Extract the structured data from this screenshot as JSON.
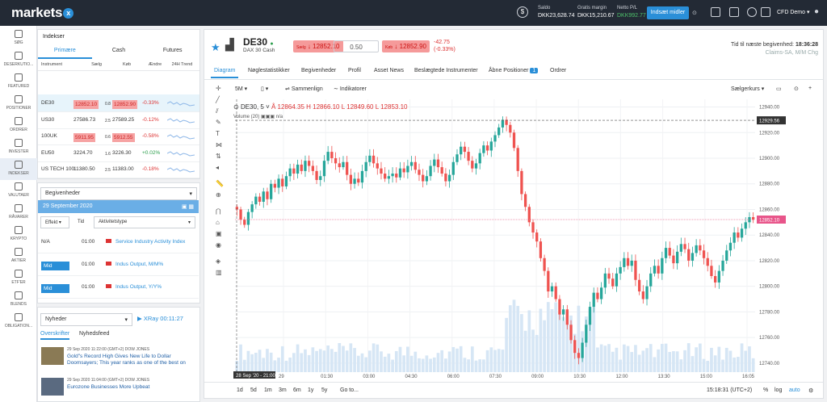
{
  "app": {
    "logo": "markets",
    "logo_x": "x"
  },
  "top": {
    "balance_label": "Saldo",
    "balance": "DKK23,628.74",
    "margin_label": "Gratis margin",
    "margin": "DKK15,210.67",
    "pl_label": "Netto P/L",
    "pl": "DKK992.77",
    "deposit": "Indsæt midler",
    "account": "CFD Demo"
  },
  "nav": [
    {
      "label": "SØG",
      "icon": "search-icon"
    },
    {
      "label": "DESERKUTIO...",
      "icon": "star-icon"
    },
    {
      "label": "FEATURED",
      "icon": "flag-icon"
    },
    {
      "label": "POSITIONER",
      "icon": "positions-icon"
    },
    {
      "label": "ORDRER",
      "icon": "orders-icon"
    },
    {
      "label": "INVESTER",
      "icon": "invest-icon"
    },
    {
      "label": "INDEKSER",
      "icon": "index-icon"
    },
    {
      "label": "VALUTAER",
      "icon": "currency-icon"
    },
    {
      "label": "RÅVARER",
      "icon": "commodity-icon"
    },
    {
      "label": "KRYPTO",
      "icon": "crypto-icon"
    },
    {
      "label": "AKTIER",
      "icon": "stocks-icon"
    },
    {
      "label": "ETF'ER",
      "icon": "etf-icon"
    },
    {
      "label": "BLENDS",
      "icon": "blends-icon"
    },
    {
      "label": "OBLIGATION...",
      "icon": "bonds-icon"
    }
  ],
  "indices": {
    "title": "Indekser",
    "tabs": [
      "Primære",
      "Cash",
      "Futures"
    ],
    "cols": [
      "Instrument",
      "Sælg",
      "Køb",
      "Ændre",
      "24H Trend"
    ],
    "rows": [
      {
        "name": "DE30",
        "sell": "12852.10",
        "spread": "0.8",
        "buy": "12852.90",
        "chg": "-0.33%"
      },
      {
        "name": "US30",
        "sell": "27586.73",
        "spread": "2.5",
        "buy": "27589.25",
        "chg": "-0.12%"
      },
      {
        "name": "100UK",
        "sell": "5911.95",
        "spread": "0.6",
        "buy": "5912.55",
        "chg": "-0.58%"
      },
      {
        "name": "EU50",
        "sell": "3224.70",
        "spread": "1.6",
        "buy": "3226.30",
        "chg": "+0.02%"
      },
      {
        "name": "US TECH 100",
        "sell": "11380.50",
        "spread": "2.5",
        "buy": "11383.00",
        "chg": "-0.18%"
      },
      {
        "name": "US500",
        "sell": "3353.38",
        "spread": "1",
        "buy": "3354.38",
        "chg": "-0.13%"
      }
    ]
  },
  "events": {
    "select": "Begivenheder",
    "date": "29 September 2020",
    "filter": "Effekt",
    "time_col": "Tid",
    "type": "Aktivitetstype",
    "rows": [
      {
        "impact": "N/A",
        "time": "01:00",
        "name": "Service Industry Activity Index"
      },
      {
        "impact": "Mid",
        "time": "01:00",
        "name": "Indus Output, M/M%"
      },
      {
        "impact": "Mid",
        "time": "01:00",
        "name": "Indus Output, Y/Y%"
      }
    ]
  },
  "news": {
    "select": "Nyheder",
    "xray": "XRay",
    "timer": "00:11:27",
    "tabs": [
      "Overskrifter",
      "Nyhedsfeed"
    ],
    "items": [
      {
        "meta": "29 Sep 2020 11:22:00 (GMT+2) DOW JONES",
        "title": "Gold\"s Record High Gives New Life to Dollar Doomsayers; This year ranks as one of the best on"
      },
      {
        "meta": "29 Sep 2020 11:04:00 (GMT+2) DOW JONES",
        "title": "Eurozone Businesses More Upbeat"
      }
    ]
  },
  "instrument": {
    "symbol": "DE30",
    "name": "DAX 30 Cash",
    "sell_label": "Sælg",
    "sell": "12852.10",
    "qty": "0.50",
    "buy_label": "Køb",
    "buy": "12852.90",
    "chg": "-42.75",
    "chg_pct": "(-0.33%)",
    "next_event_label": "Tid til næste begivenhed:",
    "next_event": "18:36:28",
    "next_event_name": "Claims-SA, M/M Chg"
  },
  "main_tabs": [
    "Diagram",
    "Nøglestatistikker",
    "Begivenheder",
    "Profil",
    "Asset News",
    "Beslægtede Instrumenter",
    "Åbne Positioner",
    "Ordrer"
  ],
  "open_positions_count": "1",
  "chart_toolbar": {
    "interval": "5M",
    "compare": "Sammenlign",
    "indicators": "Indikatorer",
    "price_type": "Sælgerkurs"
  },
  "chart_legend": {
    "symbol": "DE30, 5",
    "o": "Å 12864.35",
    "h": "H 12866.10",
    "l": "L 12849.60",
    "c": "L 12853.10",
    "volume": "Volume (20)",
    "vol_val": "n/a"
  },
  "chart_data": {
    "type": "candlestick",
    "x_ticks": [
      "29",
      "01:30",
      "03:00",
      "04:30",
      "06:00",
      "07:30",
      "09:00",
      "10:30",
      "12:00",
      "13:30",
      "15:00",
      "16:05"
    ],
    "y_ticks": [
      12940,
      12920,
      12900,
      12880,
      12860,
      12840,
      12820,
      12800,
      12780,
      12760,
      12740
    ],
    "ylim": [
      12733,
      12946
    ],
    "last_price": "12852.10",
    "crosshair_price": "12929.56",
    "crosshair_time": "28 Sep '20 - 21:00",
    "closes": [
      12860,
      12852,
      12848,
      12858,
      12864,
      12870,
      12866,
      12874,
      12868,
      12880,
      12877,
      12884,
      12878,
      12886,
      12892,
      12888,
      12895,
      12890,
      12898,
      12894,
      12890,
      12883,
      12886,
      12898,
      12905,
      12900,
      12896,
      12893,
      12897,
      12887,
      12880,
      12884,
      12881,
      12890,
      12897,
      12902,
      12896,
      12892,
      12888,
      12884,
      12886,
      12888,
      12885,
      12892,
      12889,
      12894,
      12897,
      12891,
      12887,
      12882,
      12886,
      12894,
      12899,
      12893,
      12888,
      12882,
      12887,
      12897,
      12903,
      12909,
      12905,
      12898,
      12892,
      12896,
      12904,
      12910,
      12906,
      12913,
      12918,
      12924,
      12930,
      12926,
      12920,
      12908,
      12890,
      12872,
      12862,
      12850,
      12842,
      12835,
      12822,
      12812,
      12796,
      12800,
      12790,
      12778,
      12782,
      12770,
      12758,
      12748,
      12744,
      12756,
      12770,
      12784,
      12795,
      12790,
      12799,
      12810,
      12806,
      12800,
      12810,
      12815,
      12822,
      12816,
      12820,
      12805,
      12796,
      12790,
      12800,
      12810,
      12816,
      12810,
      12822,
      12830,
      12824,
      12818,
      12827,
      12833,
      12829,
      12820,
      12826,
      12832,
      12828,
      12822,
      12816,
      12808,
      12803,
      12812,
      12820,
      12828,
      12834,
      12842,
      12838,
      12845,
      12850,
      12854,
      12852
    ]
  },
  "bottom": {
    "ranges": [
      "1d",
      "5d",
      "1m",
      "3m",
      "6m",
      "1y",
      "5y",
      "Go to..."
    ],
    "clock": "15:18:31 (UTC+2)",
    "pct": "%",
    "log": "log",
    "auto": "auto"
  },
  "colors": {
    "up": "#26a69a",
    "down": "#ef5350",
    "accent": "#2a8fd8"
  }
}
